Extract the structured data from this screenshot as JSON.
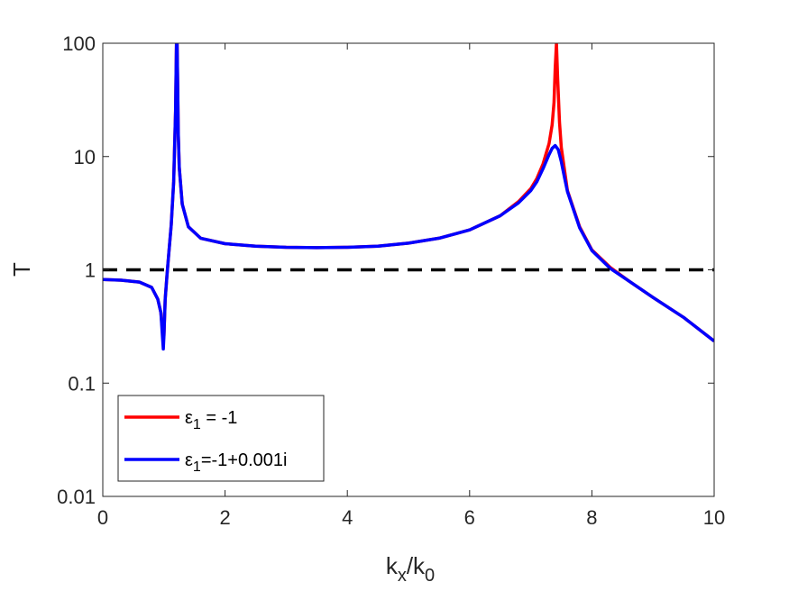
{
  "chart_data": {
    "type": "line",
    "xlabel": {
      "main": "k",
      "sub1": "x",
      "mid": "/k",
      "sub2": "0"
    },
    "ylabel": "T",
    "xlim": [
      0,
      10
    ],
    "ylim": [
      0.01,
      100
    ],
    "yscale": "log",
    "grid": false,
    "legend_position": "bottom-left",
    "x_ticks": [
      0,
      2,
      4,
      6,
      8,
      10
    ],
    "x_tick_labels": [
      "0",
      "2",
      "4",
      "6",
      "8",
      "10"
    ],
    "y_ticks": [
      0.01,
      0.1,
      1,
      10,
      100
    ],
    "y_tick_labels": [
      "0.01",
      "0.1",
      "1",
      "10",
      "100"
    ],
    "reference_line": {
      "y": 1,
      "style": "dashed",
      "color": "#000000"
    },
    "series": [
      {
        "legend": {
          "symbol": "ε",
          "sub": "1",
          "rest": " = -1"
        },
        "color": "#ff0000",
        "x": [
          0,
          0.3,
          0.6,
          0.8,
          0.9,
          0.95,
          0.99,
          1.0,
          1.02,
          1.05,
          1.08,
          1.12,
          1.16,
          1.19,
          1.205,
          1.215,
          1.225,
          1.235,
          1.25,
          1.3,
          1.4,
          1.6,
          2.0,
          2.5,
          3.0,
          3.5,
          4.0,
          4.5,
          5.0,
          5.5,
          6.0,
          6.5,
          6.8,
          7.0,
          7.1,
          7.2,
          7.3,
          7.35,
          7.38,
          7.4,
          7.42,
          7.44,
          7.47,
          7.5,
          7.6,
          7.8,
          8.0,
          8.3,
          8.6,
          9.0,
          9.5,
          10.0
        ],
        "y": [
          0.82,
          0.81,
          0.78,
          0.7,
          0.55,
          0.42,
          0.24,
          0.26,
          0.55,
          0.9,
          1.4,
          2.5,
          6.0,
          25,
          100,
          100,
          40,
          16,
          8,
          3.8,
          2.4,
          1.9,
          1.7,
          1.62,
          1.58,
          1.57,
          1.58,
          1.62,
          1.72,
          1.9,
          2.25,
          3.0,
          4.0,
          5.2,
          6.4,
          8.6,
          13,
          19,
          30,
          60,
          100,
          50,
          20,
          12,
          5.0,
          2.4,
          1.5,
          1.05,
          0.8,
          0.57,
          0.38,
          0.235
        ]
      },
      {
        "legend": {
          "symbol": "ε",
          "sub": "1",
          "rest": "=-1+0.001i"
        },
        "color": "#0000ff",
        "x": [
          0,
          0.3,
          0.6,
          0.8,
          0.9,
          0.95,
          0.99,
          1.0,
          1.02,
          1.05,
          1.08,
          1.12,
          1.16,
          1.19,
          1.205,
          1.215,
          1.225,
          1.235,
          1.25,
          1.3,
          1.4,
          1.6,
          2.0,
          2.5,
          3.0,
          3.5,
          4.0,
          4.5,
          5.0,
          5.5,
          6.0,
          6.5,
          6.8,
          7.0,
          7.1,
          7.2,
          7.3,
          7.35,
          7.4,
          7.45,
          7.5,
          7.55,
          7.6,
          7.8,
          8.0,
          8.3,
          8.6,
          9.0,
          9.5,
          10.0
        ],
        "y": [
          0.82,
          0.81,
          0.78,
          0.7,
          0.55,
          0.42,
          0.2,
          0.26,
          0.55,
          0.9,
          1.4,
          2.5,
          6.0,
          25,
          100,
          100,
          40,
          16,
          8,
          3.8,
          2.4,
          1.9,
          1.7,
          1.62,
          1.58,
          1.57,
          1.58,
          1.62,
          1.72,
          1.9,
          2.25,
          3.0,
          3.9,
          5.0,
          6.0,
          7.8,
          10.4,
          11.8,
          12.5,
          11.5,
          9.0,
          6.6,
          4.9,
          2.35,
          1.48,
          1.03,
          0.8,
          0.57,
          0.38,
          0.235
        ]
      }
    ]
  }
}
